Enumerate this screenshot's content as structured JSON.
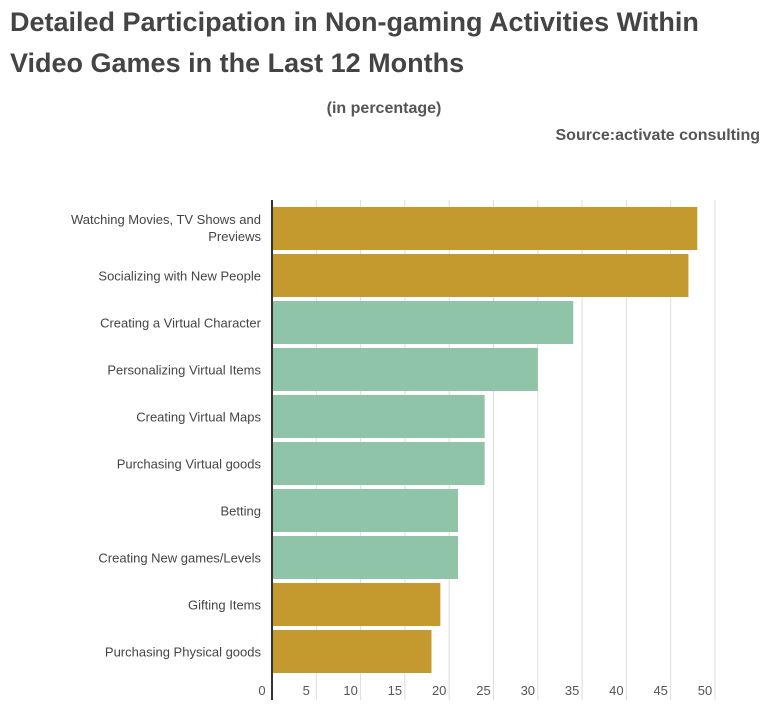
{
  "chart_data": {
    "type": "bar",
    "orientation": "horizontal",
    "title": "Detailed Participation in Non-gaming Activities Within Video Games in the Last 12 Months",
    "subtitle": "(in percentage)",
    "source": "Source:activate consulting",
    "categories": [
      "Watching Movies, TV Shows and Previews",
      "Socializing with New People",
      "Creating a Virtual Character",
      "Personalizing Virtual Items",
      "Creating Virtual Maps",
      "Purchasing Virtual goods",
      "Betting",
      "Creating New games/Levels",
      "Gifting Items",
      "Purchasing Physical goods"
    ],
    "values": [
      48,
      47,
      34,
      30,
      24,
      24,
      21,
      21,
      19,
      18
    ],
    "bar_colors": [
      "#c49a2e",
      "#c49a2e",
      "#8fc4a8",
      "#8fc4a8",
      "#8fc4a8",
      "#8fc4a8",
      "#8fc4a8",
      "#8fc4a8",
      "#c49a2e",
      "#c49a2e"
    ],
    "xlim": [
      0,
      50
    ],
    "xticks": [
      0,
      5,
      10,
      15,
      20,
      25,
      30,
      35,
      40,
      45,
      50
    ],
    "grid": true,
    "xlabel": "",
    "ylabel": ""
  }
}
